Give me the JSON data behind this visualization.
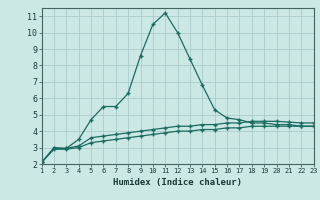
{
  "xlabel": "Humidex (Indice chaleur)",
  "background_color": "#cce8e5",
  "grid_color": "#aaccca",
  "line_color": "#1a6b60",
  "x_values": [
    1,
    2,
    3,
    4,
    5,
    6,
    7,
    8,
    9,
    10,
    11,
    12,
    13,
    14,
    15,
    16,
    17,
    18,
    19,
    20,
    21,
    22,
    23
  ],
  "series1": [
    2.1,
    3.0,
    2.95,
    3.5,
    4.7,
    5.5,
    5.5,
    6.3,
    8.6,
    10.5,
    11.2,
    10.0,
    8.4,
    6.8,
    5.3,
    4.8,
    4.7,
    4.5,
    4.5,
    4.4,
    4.4,
    4.3,
    4.3
  ],
  "series2": [
    2.1,
    2.95,
    2.95,
    3.1,
    3.6,
    3.7,
    3.8,
    3.9,
    4.0,
    4.1,
    4.2,
    4.3,
    4.3,
    4.4,
    4.4,
    4.5,
    4.5,
    4.6,
    4.6,
    4.6,
    4.55,
    4.5,
    4.5
  ],
  "series3": [
    2.1,
    2.9,
    2.9,
    3.0,
    3.3,
    3.4,
    3.5,
    3.6,
    3.7,
    3.8,
    3.9,
    4.0,
    4.0,
    4.1,
    4.1,
    4.2,
    4.2,
    4.3,
    4.3,
    4.3,
    4.3,
    4.3,
    4.3
  ],
  "ylim": [
    2,
    11.5
  ],
  "xlim": [
    1,
    23
  ],
  "yticks": [
    2,
    3,
    4,
    5,
    6,
    7,
    8,
    9,
    10,
    11
  ],
  "xticks": [
    1,
    2,
    3,
    4,
    5,
    6,
    7,
    8,
    9,
    10,
    11,
    12,
    13,
    14,
    15,
    16,
    17,
    18,
    19,
    20,
    21,
    22,
    23
  ]
}
